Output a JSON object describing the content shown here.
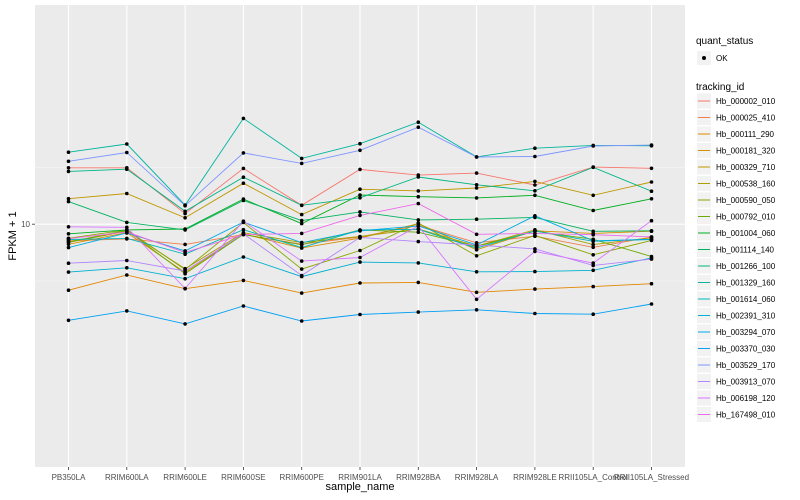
{
  "chart_data": {
    "type": "line",
    "xlabel": "sample_name",
    "ylabel": "FPKM + 1",
    "y_scale": "log",
    "y_ticks": [
      10
    ],
    "y_tick_labels": [
      "10"
    ],
    "categories": [
      "PB350LA",
      "RRIM600LA",
      "RRIM600LE",
      "RRIM600SE",
      "RRIM600PE",
      "RRIM901LA",
      "RRIM928BA",
      "RRIM928LA",
      "RRIM928LE",
      "RRII105LA_Control",
      "RRII105LA_Stressed"
    ],
    "grid": true,
    "legend_position": "right",
    "legend_shape": {
      "title": "quant_status",
      "items": [
        {
          "label": "OK"
        }
      ]
    },
    "legend_color": {
      "title": "tracking_id"
    },
    "series": [
      {
        "name": "Hb_000002_010",
        "color": "#F8766D",
        "values": [
          31.31,
          31.31,
          12.39,
          30.88,
          14.64,
          30.28,
          26.98,
          28.13,
          22.11,
          31.73,
          30.98
        ]
      },
      {
        "name": "Hb_000025_410",
        "color": "#EE7F4A",
        "values": [
          7.14,
          7.43,
          6.64,
          8.1,
          6.67,
          7.72,
          9.76,
          6.86,
          7.84,
          6.26,
          7.7
        ]
      },
      {
        "name": "Hb_000111_290",
        "color": "#E28700",
        "values": [
          2.63,
          3.58,
          2.71,
          3.21,
          2.48,
          3.04,
          3.08,
          2.52,
          2.69,
          2.83,
          3.0
        ]
      },
      {
        "name": "Hb_000181_320",
        "color": "#D29000",
        "values": [
          6.65,
          8.43,
          3.76,
          8.21,
          6.16,
          7.55,
          10.11,
          5.96,
          8.74,
          8.3,
          8.67
        ]
      },
      {
        "name": "Hb_000329_710",
        "color": "#BF9800",
        "values": [
          16.74,
          18.59,
          11.38,
          22.91,
          12.15,
          20.28,
          19.62,
          20.78,
          23.75,
          17.95,
          23.48
        ]
      },
      {
        "name": "Hb_000538_160",
        "color": "#A99F00",
        "values": [
          6.92,
          8.67,
          4.06,
          8.41,
          6.89,
          7.8,
          9.09,
          6.42,
          8.92,
          6.62,
          7.59
        ]
      },
      {
        "name": "Hb_000590_050",
        "color": "#8EA500",
        "values": [
          7.52,
          8.92,
          3.99,
          10.34,
          4.03,
          5.87,
          10.24,
          5.27,
          7.97,
          5.38,
          7.21
        ]
      },
      {
        "name": "Hb_000792_010",
        "color": "#68AA00",
        "values": [
          6.98,
          8.81,
          3.67,
          8.13,
          6.59,
          8.89,
          8.51,
          6.37,
          8.68,
          7.36,
          5.2
        ]
      },
      {
        "name": "Hb_001004_060",
        "color": "#00AE1D",
        "values": [
          8.23,
          8.9,
          9.08,
          16.62,
          10.11,
          18.03,
          17.43,
          17.01,
          17.94,
          13.19,
          16.72
        ]
      },
      {
        "name": "Hb_001114_140",
        "color": "#00B25F",
        "values": [
          15.8,
          10.36,
          8.91,
          16.16,
          10.75,
          12.81,
          10.91,
          11.06,
          11.48,
          8.66,
          8.74
        ]
      },
      {
        "name": "Hb_001266_100",
        "color": "#00B483",
        "values": [
          29.11,
          30.39,
          12.98,
          25.86,
          14.64,
          17.04,
          25.95,
          22.2,
          19.65,
          31.59,
          19.49
        ]
      },
      {
        "name": "Hb_001329_160",
        "color": "#00B59E",
        "values": [
          42.93,
          50.59,
          14.72,
          85.06,
          37.86,
          50.98,
          78.73,
          39.03,
          46.56,
          49.27,
          48.78
        ]
      },
      {
        "name": "Hb_001614_060",
        "color": "#00B5B8",
        "values": [
          7.34,
          7.5,
          5.45,
          8.94,
          6.23,
          8.89,
          9.01,
          6.16,
          8.73,
          7.07,
          7.34
        ]
      },
      {
        "name": "Hb_002391_310",
        "color": "#00B0D0",
        "values": [
          3.79,
          4.14,
          3.32,
          5.15,
          3.46,
          4.64,
          4.57,
          3.82,
          3.83,
          3.93,
          5.06
        ]
      },
      {
        "name": "Hb_003294_070",
        "color": "#00AAE4",
        "values": [
          6.23,
          8.37,
          5.82,
          10.42,
          6.88,
          8.73,
          9.65,
          6.58,
          11.86,
          7.15,
          7.37
        ]
      },
      {
        "name": "Hb_003370_030",
        "color": "#00A0F4",
        "values": [
          1.43,
          1.73,
          1.33,
          1.91,
          1.41,
          1.61,
          1.69,
          1.77,
          1.64,
          1.62,
          1.99
        ]
      },
      {
        "name": "Hb_003529_170",
        "color": "#7E96FF",
        "values": [
          35.65,
          42.62,
          14.54,
          42.32,
          34.23,
          44.57,
          71.13,
          38.92,
          39.36,
          48.67,
          49.51
        ]
      },
      {
        "name": "Hb_003913_070",
        "color": "#B284FF",
        "values": [
          4.54,
          4.8,
          3.88,
          8.23,
          3.54,
          7.65,
          7.03,
          6.56,
          6.07,
          4.34,
          4.93
        ]
      },
      {
        "name": "Hb_006198_120",
        "color": "#D876FF",
        "values": [
          9.49,
          9.38,
          2.72,
          10.63,
          4.74,
          5.1,
          9.63,
          2.19,
          5.77,
          4.55,
          10.73
        ]
      },
      {
        "name": "Hb_167498_010",
        "color": "#EF67EB",
        "values": [
          7.46,
          8.56,
          5.65,
          8.12,
          8.3,
          11.94,
          15.16,
          8.15,
          8.3,
          8.09,
          7.73
        ]
      }
    ]
  }
}
